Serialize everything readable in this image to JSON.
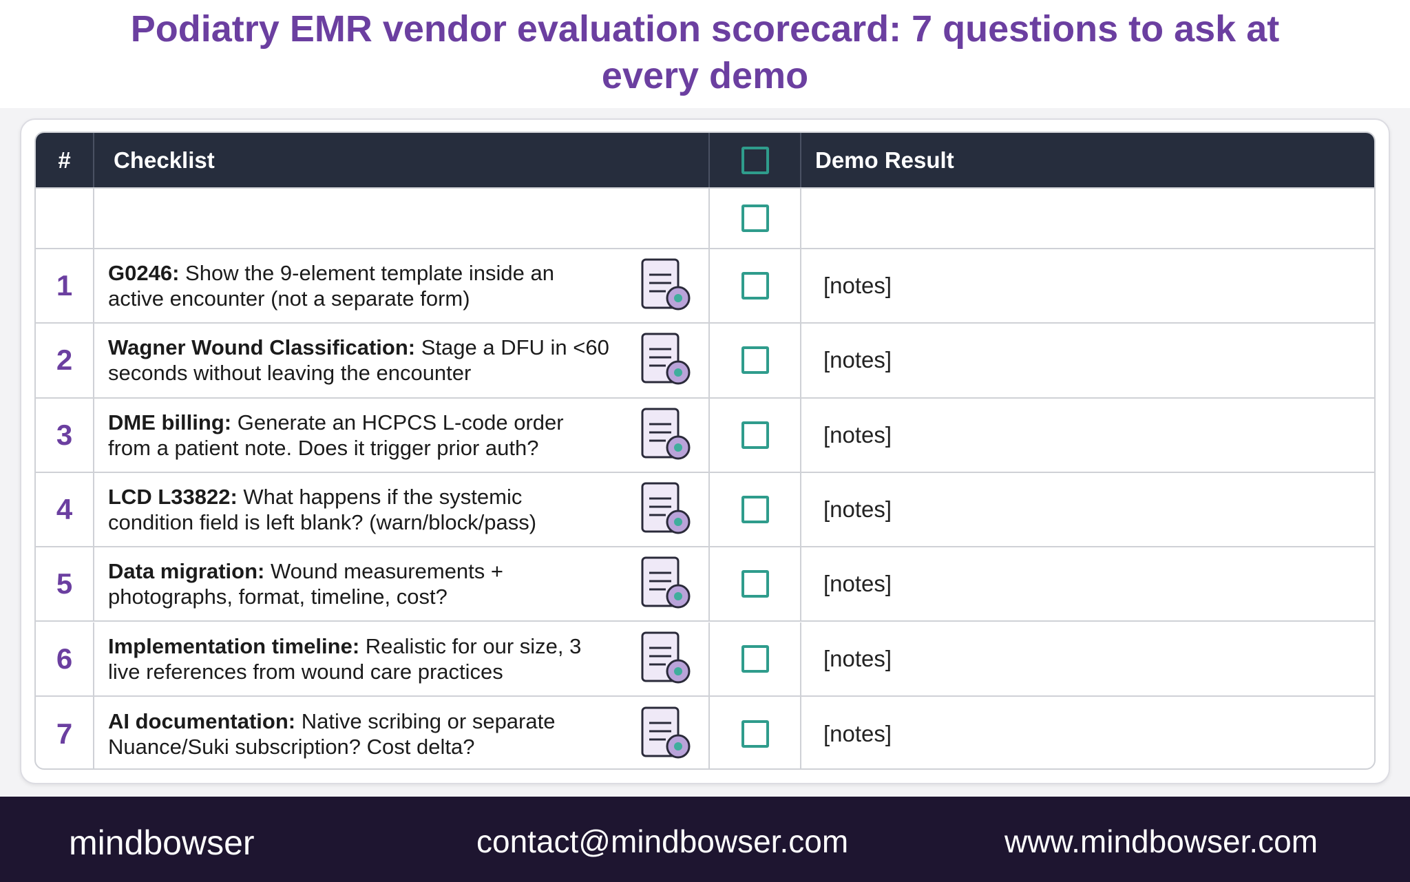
{
  "header": {
    "title": "Podiatry EMR vendor evaluation scorecard: 7 questions to ask at every demo"
  },
  "table": {
    "columns": [
      "#",
      "Checklist",
      "Demo Result"
    ],
    "rows": [
      {
        "number": "1",
        "label": "G0246:",
        "text": "Show the 9-element template inside an active encounter (not a separate form)",
        "result": "[notes]"
      },
      {
        "number": "2",
        "label": "Wagner Wound Classification:",
        "text": "Stage a DFU in <60 seconds without leaving the encounter",
        "result": "[notes]"
      },
      {
        "number": "3",
        "label": "DME billing:",
        "text": "Generate an HCPCS L-code order from a patient note. Does it trigger prior auth?",
        "result": "[notes]"
      },
      {
        "number": "4",
        "label": "LCD L33822:",
        "text": "What happens if the systemic condition field is left blank? (warn/block/pass)",
        "result": "[notes]"
      },
      {
        "number": "5",
        "label": "Data migration:",
        "text": "Wound measurements + photographs, format, timeline, cost?",
        "result": "[notes]"
      },
      {
        "number": "6",
        "label": "Implementation timeline:",
        "text": "Realistic for our size, 3 live references from wound care practices",
        "result": "[notes]"
      },
      {
        "number": "7",
        "label": "AI documentation:",
        "text": "Native scribing or separate Nuance/Suki subscription? Cost delta?",
        "result": "[notes]"
      }
    ]
  },
  "footer": {
    "logo": "mindbowser",
    "email": "contact@mindbowser.com",
    "website": "www.mindbowser.com"
  }
}
